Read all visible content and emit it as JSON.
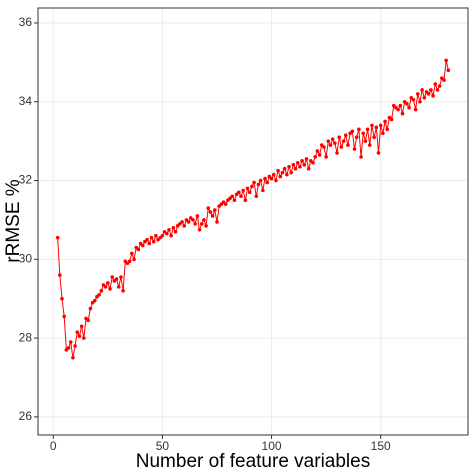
{
  "chart_data": {
    "type": "line",
    "x_label": "Number of feature variables",
    "y_label": "rRMSE %",
    "color": "#ff0000",
    "grid": true,
    "xlim": [
      -7,
      190
    ],
    "ylim": [
      25.54,
      36.38
    ],
    "xticks": [
      0,
      50,
      100,
      150
    ],
    "yticks": [
      26,
      28,
      30,
      32,
      34,
      36
    ],
    "x": [
      2,
      3,
      4,
      5,
      6,
      7,
      8,
      9,
      10,
      11,
      12,
      13,
      14,
      15,
      16,
      17,
      18,
      19,
      20,
      21,
      22,
      23,
      24,
      25,
      26,
      27,
      28,
      29,
      30,
      31,
      32,
      33,
      34,
      35,
      36,
      37,
      38,
      39,
      40,
      41,
      42,
      43,
      44,
      45,
      46,
      47,
      48,
      49,
      50,
      51,
      52,
      53,
      54,
      55,
      56,
      57,
      58,
      59,
      60,
      61,
      62,
      63,
      64,
      65,
      66,
      67,
      68,
      69,
      70,
      71,
      72,
      73,
      74,
      75,
      76,
      77,
      78,
      79,
      80,
      81,
      82,
      83,
      84,
      85,
      86,
      87,
      88,
      89,
      90,
      91,
      92,
      93,
      94,
      95,
      96,
      97,
      98,
      99,
      100,
      101,
      102,
      103,
      104,
      105,
      106,
      107,
      108,
      109,
      110,
      111,
      112,
      113,
      114,
      115,
      116,
      117,
      118,
      119,
      120,
      121,
      122,
      123,
      124,
      125,
      126,
      127,
      128,
      129,
      130,
      131,
      132,
      133,
      134,
      135,
      136,
      137,
      138,
      139,
      140,
      141,
      142,
      143,
      144,
      145,
      146,
      147,
      148,
      149,
      150,
      151,
      152,
      153,
      154,
      155,
      156,
      157,
      158,
      159,
      160,
      161,
      162,
      163,
      164,
      165,
      166,
      167,
      168,
      169,
      170,
      171,
      172,
      173,
      174,
      175,
      176,
      177,
      178,
      179,
      180,
      181
    ],
    "values": [
      30.55,
      29.6,
      29.0,
      28.55,
      27.7,
      27.75,
      27.9,
      27.5,
      27.8,
      28.15,
      28.05,
      28.3,
      28.0,
      28.5,
      28.45,
      28.75,
      28.9,
      28.95,
      29.05,
      29.1,
      29.2,
      29.35,
      29.3,
      29.4,
      29.25,
      29.55,
      29.45,
      29.5,
      29.3,
      29.55,
      29.2,
      29.95,
      29.9,
      29.95,
      30.15,
      30.0,
      30.3,
      30.25,
      30.4,
      30.35,
      30.45,
      30.5,
      30.4,
      30.55,
      30.45,
      30.6,
      30.5,
      30.55,
      30.6,
      30.7,
      30.65,
      30.75,
      30.6,
      30.8,
      30.7,
      30.85,
      30.9,
      30.95,
      30.85,
      31.0,
      30.95,
      31.05,
      31.0,
      30.9,
      31.1,
      30.75,
      30.9,
      31.0,
      30.85,
      31.3,
      31.2,
      31.1,
      31.25,
      30.95,
      31.35,
      31.4,
      31.45,
      31.4,
      31.5,
      31.55,
      31.6,
      31.5,
      31.65,
      31.7,
      31.6,
      31.75,
      31.5,
      31.8,
      31.7,
      31.85,
      31.95,
      31.6,
      31.9,
      32.0,
      31.75,
      32.05,
      31.95,
      32.1,
      32.05,
      32.15,
      32.0,
      32.25,
      32.1,
      32.2,
      32.3,
      32.15,
      32.35,
      32.2,
      32.4,
      32.3,
      32.45,
      32.35,
      32.5,
      32.4,
      32.55,
      32.3,
      32.5,
      32.45,
      32.6,
      32.75,
      32.65,
      32.9,
      32.85,
      32.6,
      33.0,
      32.9,
      33.05,
      32.95,
      32.7,
      33.1,
      32.85,
      33.0,
      33.15,
      32.9,
      33.2,
      33.25,
      32.8,
      33.1,
      33.3,
      32.6,
      33.2,
      33.0,
      33.3,
      32.9,
      33.4,
      33.1,
      33.35,
      32.7,
      33.4,
      33.2,
      33.5,
      33.3,
      33.6,
      33.55,
      33.9,
      33.85,
      33.8,
      33.9,
      33.7,
      34.0,
      33.95,
      33.85,
      34.1,
      34.05,
      33.8,
      34.2,
      34.0,
      34.3,
      34.1,
      34.25,
      34.2,
      34.3,
      34.15,
      34.45,
      34.3,
      34.4,
      34.6,
      34.55,
      35.05,
      34.8
    ]
  }
}
